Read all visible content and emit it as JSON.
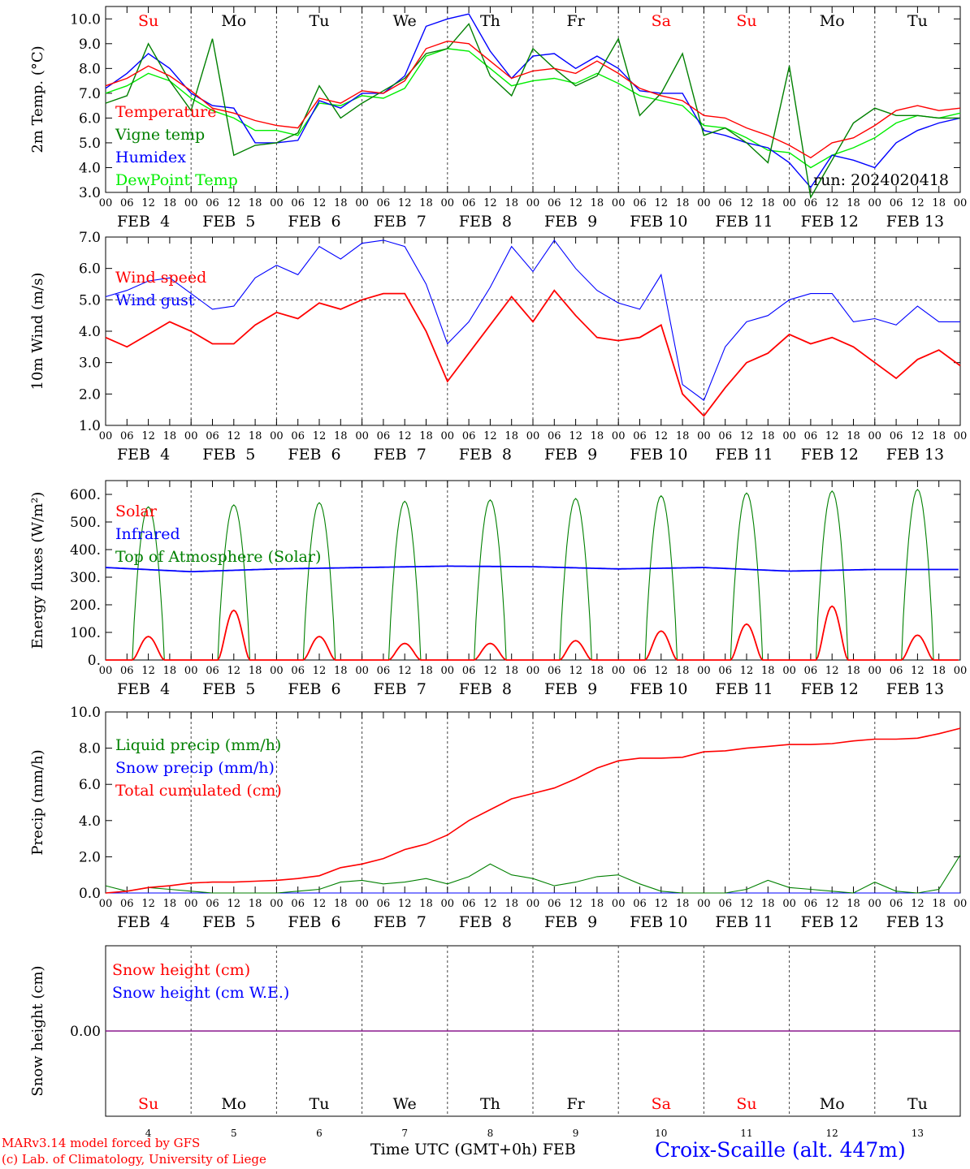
{
  "footer": {
    "credit_line1": "MARv3.14 model forced by GFS",
    "credit_line2": "(c) Lab. of Climatology, University of Liege",
    "x_axis_title": "Time UTC (GMT+0h) FEB",
    "station": "Croix-Scaille (alt. 447m)"
  },
  "chart_data": [
    {
      "type": "line",
      "ylabel": "2m Temp. (°C)",
      "ylim": [
        3.0,
        10.5
      ],
      "yticks": [
        "3.0",
        "4.0",
        "5.0",
        "6.0",
        "7.0",
        "8.0",
        "9.0",
        "10.0"
      ],
      "day_labels": [
        "Su",
        "Mo",
        "Tu",
        "We",
        "Th",
        "Fr",
        "Sa",
        "Su",
        "Mo",
        "Tu"
      ],
      "day_label_colors": [
        "#ff0000",
        "#000000",
        "#000000",
        "#000000",
        "#000000",
        "#000000",
        "#ff0000",
        "#ff0000",
        "#000000",
        "#000000"
      ],
      "hour_ticks": [
        "00",
        "06",
        "12",
        "18"
      ],
      "date_labels": [
        "FEB  4",
        "FEB  5",
        "FEB  6",
        "FEB  7",
        "FEB  8",
        "FEB  9",
        "FEB 10",
        "FEB 11",
        "FEB 12",
        "FEB 13"
      ],
      "annotation": "run: 2024020418",
      "x": [
        0,
        6,
        12,
        18,
        24,
        30,
        36,
        42,
        48,
        54,
        60,
        66,
        72,
        78,
        84,
        90,
        96,
        102,
        108,
        114,
        120,
        126,
        132,
        138,
        144,
        150,
        156,
        162,
        168,
        174,
        180,
        186,
        192,
        198,
        204,
        210,
        216,
        222,
        228,
        234,
        240
      ],
      "series": [
        {
          "name": "Temperature",
          "color": "#ff0000",
          "values": [
            7.3,
            7.6,
            8.1,
            7.7,
            7.1,
            6.4,
            6.2,
            5.9,
            5.7,
            5.6,
            6.8,
            6.6,
            7.1,
            7.0,
            7.5,
            8.8,
            9.1,
            9.0,
            8.3,
            7.6,
            7.9,
            8.0,
            7.8,
            8.3,
            7.8,
            7.2,
            6.9,
            6.7,
            6.1,
            6.0,
            5.6,
            5.3,
            4.9,
            4.4,
            5.0,
            5.2,
            5.7,
            6.3,
            6.5,
            6.3,
            6.4
          ]
        },
        {
          "name": "Vigne temp",
          "color": "#008000",
          "values": [
            6.6,
            6.9,
            9.0,
            7.5,
            6.3,
            9.2,
            4.5,
            4.9,
            5.0,
            5.4,
            7.3,
            6.0,
            6.6,
            7.1,
            7.6,
            8.6,
            8.8,
            9.8,
            7.7,
            6.9,
            8.8,
            8.0,
            7.3,
            7.7,
            9.2,
            6.1,
            7.0,
            8.6,
            5.3,
            5.6,
            5.0,
            4.2,
            8.1,
            2.8,
            4.3,
            5.8,
            6.4,
            6.1,
            6.1,
            6.0,
            6.0
          ]
        },
        {
          "name": "Humidex",
          "color": "#0000ff",
          "values": [
            7.2,
            7.8,
            8.6,
            8.0,
            7.0,
            6.5,
            6.4,
            5.0,
            5.0,
            5.1,
            6.7,
            6.4,
            7.0,
            7.0,
            7.7,
            9.7,
            10.0,
            10.2,
            8.7,
            7.6,
            8.5,
            8.6,
            8.0,
            8.5,
            8.0,
            7.1,
            7.0,
            7.0,
            5.5,
            5.3,
            5.0,
            4.8,
            4.2,
            3.2,
            4.5,
            4.3,
            4.0,
            5.0,
            5.5,
            5.8,
            6.0
          ]
        },
        {
          "name": "DewPoint Temp",
          "color": "#00ee00",
          "values": [
            7.0,
            7.3,
            7.8,
            7.5,
            6.8,
            6.3,
            6.0,
            5.5,
            5.5,
            5.3,
            6.6,
            6.5,
            6.9,
            6.8,
            7.2,
            8.5,
            8.8,
            8.7,
            8.0,
            7.3,
            7.5,
            7.6,
            7.4,
            7.8,
            7.4,
            6.9,
            6.7,
            6.5,
            5.7,
            5.6,
            5.2,
            4.7,
            4.6,
            4.0,
            4.5,
            4.8,
            5.2,
            5.8,
            6.1,
            6.0,
            6.2
          ]
        }
      ]
    },
    {
      "type": "line",
      "ylabel": "10m Wind (m/s)",
      "ylim": [
        1.0,
        7.0
      ],
      "yticks": [
        "1.0",
        "2.0",
        "3.0",
        "4.0",
        "5.0",
        "6.0",
        "7.0"
      ],
      "reference_line": 5.0,
      "hour_ticks": [
        "00",
        "06",
        "12",
        "18"
      ],
      "date_labels": [
        "FEB  4",
        "FEB  5",
        "FEB  6",
        "FEB  7",
        "FEB  8",
        "FEB  9",
        "FEB 10",
        "FEB 11",
        "FEB 12",
        "FEB 13"
      ],
      "x": [
        0,
        6,
        12,
        18,
        24,
        30,
        36,
        42,
        48,
        54,
        60,
        66,
        72,
        78,
        84,
        90,
        96,
        102,
        108,
        114,
        120,
        126,
        132,
        138,
        144,
        150,
        156,
        162,
        168,
        174,
        180,
        186,
        192,
        198,
        204,
        210,
        216,
        222,
        228,
        234,
        240
      ],
      "series": [
        {
          "name": "Wind speed",
          "color": "#ff0000",
          "values": [
            3.8,
            3.5,
            3.9,
            4.3,
            4.0,
            3.6,
            3.6,
            4.2,
            4.6,
            4.4,
            4.9,
            4.7,
            5.0,
            5.2,
            5.2,
            4.0,
            2.4,
            3.3,
            4.2,
            5.1,
            4.3,
            5.3,
            4.5,
            3.8,
            3.7,
            3.8,
            4.2,
            2.0,
            1.3,
            2.2,
            3.0,
            3.3,
            3.9,
            3.6,
            3.8,
            3.5,
            3.0,
            2.5,
            3.1,
            3.4,
            2.9
          ]
        },
        {
          "name": "Wind gust",
          "color": "#0000ff",
          "values": [
            5.1,
            5.3,
            5.6,
            5.7,
            5.2,
            4.7,
            4.8,
            5.7,
            6.1,
            5.8,
            6.7,
            6.3,
            6.8,
            6.9,
            6.7,
            5.5,
            3.6,
            4.3,
            5.4,
            6.7,
            5.9,
            6.9,
            6.0,
            5.3,
            4.9,
            4.7,
            5.8,
            2.3,
            1.8,
            3.5,
            4.3,
            4.5,
            5.0,
            5.2,
            5.2,
            4.3,
            4.4,
            4.2,
            4.8,
            4.3,
            4.3
          ]
        }
      ]
    },
    {
      "type": "line",
      "ylabel": "Energy fluxes (W/m²)",
      "ylim": [
        0,
        650
      ],
      "yticks": [
        "0.",
        "100.",
        "200.",
        "300.",
        "400.",
        "500.",
        "600."
      ],
      "hour_ticks": [
        "00",
        "06",
        "12",
        "18"
      ],
      "date_labels": [
        "FEB  4",
        "FEB  5",
        "FEB  6",
        "FEB  7",
        "FEB  8",
        "FEB  9",
        "FEB 10",
        "FEB 11",
        "FEB 12",
        "FEB 13"
      ],
      "days": [
        "Feb 4",
        "Feb 5",
        "Feb 6",
        "Feb 7",
        "Feb 8",
        "Feb 9",
        "Feb 10",
        "Feb 11",
        "Feb 12",
        "Feb 13"
      ],
      "toa_daily_peak": [
        555,
        562,
        570,
        575,
        580,
        585,
        595,
        605,
        612,
        618
      ],
      "solar_daily_peak": [
        85,
        180,
        85,
        60,
        60,
        70,
        105,
        130,
        195,
        90
      ],
      "daylight_hours_utc": [
        7.5,
        16.5
      ],
      "infrared_values_by_day": [
        335,
        320,
        330,
        335,
        340,
        338,
        330,
        335,
        322,
        328
      ],
      "series": [
        {
          "name": "Solar",
          "color": "#ff0000"
        },
        {
          "name": "Infrared",
          "color": "#0000ff"
        },
        {
          "name": "Top of Atmosphere (Solar)",
          "color": "#008000"
        }
      ]
    },
    {
      "type": "line",
      "ylabel": "Precip (mm/h)",
      "ylim": [
        0.0,
        10.0
      ],
      "yticks": [
        "0.0",
        "2.0",
        "4.0",
        "6.0",
        "8.0",
        "10.0"
      ],
      "hour_ticks": [
        "00",
        "06",
        "12",
        "18"
      ],
      "date_labels": [
        "FEB  4",
        "FEB  5",
        "FEB  6",
        "FEB  7",
        "FEB  8",
        "FEB  9",
        "FEB 10",
        "FEB 11",
        "FEB 12",
        "FEB 13"
      ],
      "x": [
        0,
        6,
        12,
        18,
        24,
        30,
        36,
        42,
        48,
        54,
        60,
        66,
        72,
        78,
        84,
        90,
        96,
        102,
        108,
        114,
        120,
        126,
        132,
        138,
        144,
        150,
        156,
        162,
        168,
        174,
        180,
        186,
        192,
        198,
        204,
        210,
        216,
        222,
        228,
        234,
        240
      ],
      "series": [
        {
          "name": "Liquid precip (mm/h)",
          "color": "#008000",
          "values": [
            0.4,
            0.1,
            0.3,
            0.2,
            0.1,
            0.0,
            0.0,
            0.0,
            0.0,
            0.1,
            0.2,
            0.6,
            0.7,
            0.5,
            0.6,
            0.8,
            0.5,
            0.9,
            1.6,
            1.0,
            0.8,
            0.4,
            0.6,
            0.9,
            1.0,
            0.5,
            0.1,
            0.0,
            0.0,
            0.0,
            0.2,
            0.7,
            0.3,
            0.2,
            0.1,
            0.0,
            0.6,
            0.1,
            0.0,
            0.2,
            2.1
          ]
        },
        {
          "name": "Snow precip (mm/h)",
          "color": "#0000ff",
          "values": [
            0,
            0,
            0,
            0,
            0,
            0,
            0,
            0,
            0,
            0,
            0,
            0,
            0,
            0,
            0,
            0,
            0,
            0,
            0,
            0,
            0,
            0,
            0,
            0,
            0,
            0,
            0,
            0,
            0,
            0,
            0,
            0,
            0,
            0,
            0,
            0,
            0,
            0,
            0,
            0,
            0
          ]
        },
        {
          "name": "Total cumulated (cm)",
          "color": "#ff0000",
          "values": [
            0.0,
            0.1,
            0.3,
            0.4,
            0.55,
            0.6,
            0.6,
            0.65,
            0.7,
            0.8,
            0.95,
            1.4,
            1.6,
            1.9,
            2.4,
            2.7,
            3.2,
            4.0,
            4.6,
            5.2,
            5.5,
            5.8,
            6.3,
            6.9,
            7.3,
            7.45,
            7.45,
            7.5,
            7.8,
            7.85,
            8.0,
            8.1,
            8.2,
            8.2,
            8.25,
            8.4,
            8.5,
            8.5,
            8.55,
            8.8,
            9.1
          ]
        }
      ]
    },
    {
      "type": "line",
      "ylabel": "Snow height (cm)",
      "yticks": [
        "0.00"
      ],
      "day_labels": [
        "Su",
        "Mo",
        "Tu",
        "We",
        "Th",
        "Fr",
        "Sa",
        "Su",
        "Mo",
        "Tu"
      ],
      "day_label_colors": [
        "#ff0000",
        "#000000",
        "#000000",
        "#000000",
        "#000000",
        "#000000",
        "#ff0000",
        "#ff0000",
        "#000000",
        "#000000"
      ],
      "day_numbers": [
        "4",
        "5",
        "6",
        "7",
        "8",
        "9",
        "10",
        "11",
        "12",
        "13"
      ],
      "series": [
        {
          "name": "Snow height (cm)",
          "color": "#ff0000",
          "values": [
            0,
            0
          ]
        },
        {
          "name": "Snow height (cm W.E.)",
          "color": "#0000ff",
          "values": [
            0,
            0
          ]
        }
      ]
    }
  ]
}
